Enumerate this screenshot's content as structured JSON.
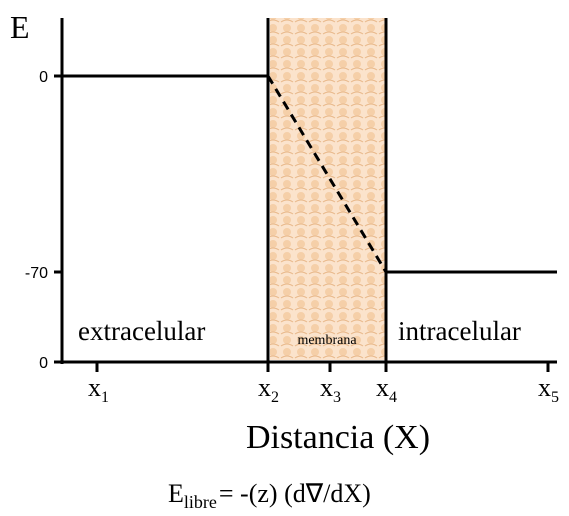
{
  "axis": {
    "y_label": "E",
    "y_ticks": [
      "0",
      "-70",
      "0"
    ],
    "x_label": "Distancia (X)",
    "x_ticks": [
      {
        "base": "x",
        "sub": "1"
      },
      {
        "base": "x",
        "sub": "2"
      },
      {
        "base": "x",
        "sub": "3"
      },
      {
        "base": "x",
        "sub": "4"
      },
      {
        "base": "x",
        "sub": "5"
      }
    ]
  },
  "regions": [
    "extracelular",
    "membrana",
    "intracelular"
  ],
  "equation": {
    "base": "E",
    "sub": "libre",
    "rest": "= -(z) (d∇/dX)"
  }
}
